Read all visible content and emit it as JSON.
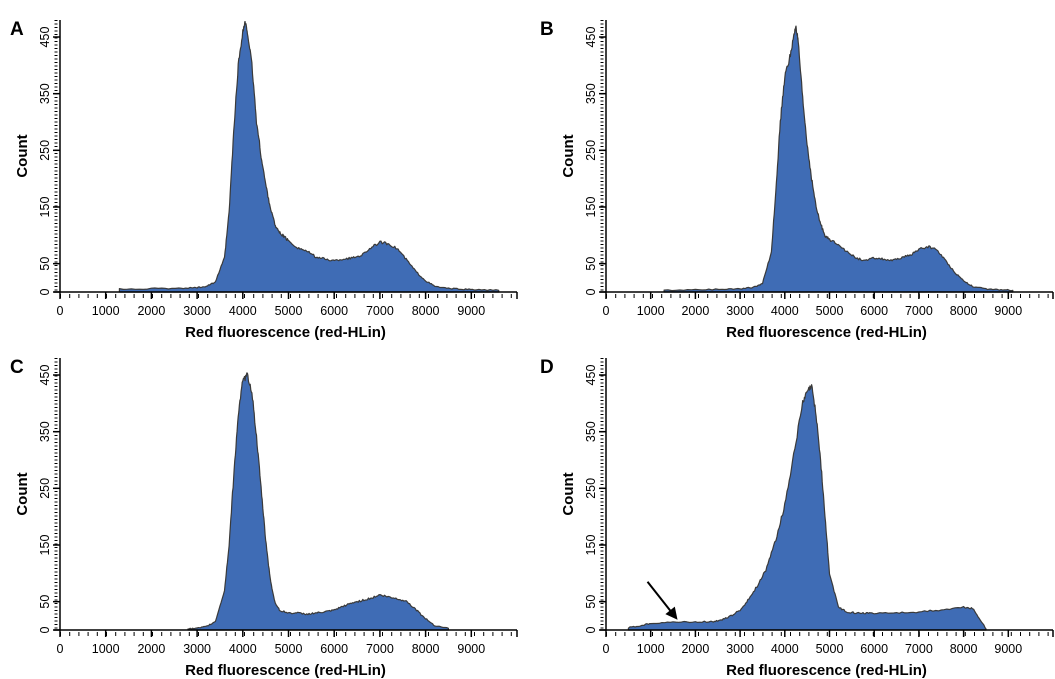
{
  "colors": {
    "fill": "#3f6cb5",
    "edge": "#3a3a3a",
    "axis": "#000000"
  },
  "chart_data": [
    {
      "panel": "A",
      "type": "area",
      "xlabel": "Red fluorescence (red-HLin)",
      "ylabel": "Count",
      "xlim": [
        0,
        10000
      ],
      "ylim": [
        0,
        480
      ],
      "xticks": [
        "0",
        "1000",
        "2000",
        "3000",
        "4000",
        "5000",
        "6000",
        "7000",
        "8000",
        "9000"
      ],
      "yticks": [
        "0",
        "50",
        "150",
        "250",
        "350",
        "450"
      ],
      "grid": false,
      "x": [
        1300,
        2000,
        2600,
        3000,
        3200,
        3400,
        3600,
        3700,
        3800,
        3900,
        4000,
        4050,
        4100,
        4200,
        4300,
        4400,
        4500,
        4600,
        4700,
        4800,
        4900,
        5000,
        5200,
        5400,
        5600,
        5800,
        6000,
        6200,
        6400,
        6600,
        6800,
        7000,
        7200,
        7400,
        7600,
        7800,
        8000,
        8200,
        8500,
        8800,
        9100,
        9600
      ],
      "y": [
        5,
        6,
        6,
        8,
        10,
        18,
        60,
        140,
        280,
        400,
        460,
        475,
        460,
        400,
        300,
        240,
        190,
        150,
        120,
        105,
        98,
        90,
        78,
        72,
        62,
        58,
        55,
        58,
        60,
        65,
        78,
        88,
        85,
        75,
        55,
        35,
        20,
        10,
        6,
        5,
        4,
        3
      ]
    },
    {
      "panel": "B",
      "type": "area",
      "xlabel": "Red fluorescence (red-HLin)",
      "ylabel": "Count",
      "xlim": [
        0,
        10000
      ],
      "ylim": [
        0,
        480
      ],
      "xticks": [
        "0",
        "1000",
        "2000",
        "3000",
        "4000",
        "5000",
        "6000",
        "7000",
        "8000",
        "9000"
      ],
      "yticks": [
        "0",
        "50",
        "150",
        "250",
        "350",
        "450"
      ],
      "grid": false,
      "x": [
        1300,
        2000,
        2600,
        3000,
        3300,
        3500,
        3700,
        3800,
        3900,
        4000,
        4100,
        4200,
        4250,
        4300,
        4400,
        4500,
        4600,
        4700,
        4800,
        4900,
        5000,
        5200,
        5400,
        5600,
        5800,
        6000,
        6200,
        6400,
        6600,
        6800,
        7000,
        7200,
        7400,
        7600,
        7800,
        8000,
        8200,
        8500,
        8800,
        9100
      ],
      "y": [
        3,
        4,
        5,
        6,
        8,
        15,
        70,
        180,
        300,
        380,
        410,
        450,
        470,
        440,
        340,
        260,
        200,
        150,
        120,
        100,
        92,
        85,
        70,
        60,
        55,
        60,
        58,
        55,
        60,
        65,
        75,
        80,
        75,
        55,
        35,
        20,
        10,
        5,
        4,
        3
      ]
    },
    {
      "panel": "C",
      "type": "area",
      "xlabel": "Red fluorescence (red-HLin)",
      "ylabel": "Count",
      "xlim": [
        0,
        10000
      ],
      "ylim": [
        0,
        480
      ],
      "xticks": [
        "0",
        "1000",
        "2000",
        "3000",
        "4000",
        "5000",
        "6000",
        "7000",
        "8000",
        "9000"
      ],
      "yticks": [
        "0",
        "50",
        "150",
        "250",
        "350",
        "450"
      ],
      "grid": false,
      "x": [
        2800,
        3000,
        3200,
        3400,
        3600,
        3700,
        3800,
        3900,
        4000,
        4100,
        4200,
        4300,
        4400,
        4500,
        4600,
        4700,
        4800,
        5000,
        5200,
        5400,
        5600,
        5800,
        6000,
        6200,
        6400,
        6600,
        6800,
        7000,
        7200,
        7400,
        7600,
        7800,
        8000,
        8200,
        8500
      ],
      "y": [
        2,
        3,
        6,
        15,
        70,
        150,
        270,
        380,
        440,
        450,
        420,
        340,
        250,
        160,
        90,
        50,
        35,
        30,
        30,
        28,
        30,
        32,
        35,
        42,
        48,
        52,
        56,
        62,
        58,
        55,
        50,
        35,
        20,
        8,
        3
      ]
    },
    {
      "panel": "D",
      "type": "area",
      "xlabel": "Red fluorescence (red-HLin)",
      "ylabel": "Count",
      "xlim": [
        0,
        10000
      ],
      "ylim": [
        0,
        480
      ],
      "xticks": [
        "0",
        "1000",
        "2000",
        "3000",
        "4000",
        "5000",
        "6000",
        "7000",
        "8000",
        "9000"
      ],
      "yticks": [
        "0",
        "50",
        "150",
        "250",
        "350",
        "450"
      ],
      "grid": false,
      "x": [
        500,
        800,
        1000,
        1500,
        2000,
        2400,
        2600,
        2800,
        3000,
        3200,
        3400,
        3600,
        3800,
        4000,
        4200,
        4400,
        4500,
        4600,
        4700,
        4800,
        4900,
        5000,
        5200,
        5400,
        5600,
        5800,
        6000,
        6500,
        7000,
        7500,
        8000,
        8200,
        8400,
        8500
      ],
      "y": [
        4,
        8,
        12,
        14,
        14,
        15,
        18,
        25,
        35,
        55,
        80,
        110,
        160,
        220,
        310,
        400,
        420,
        430,
        380,
        300,
        200,
        100,
        40,
        32,
        30,
        30,
        30,
        30,
        32,
        35,
        40,
        38,
        15,
        2
      ],
      "annotations": [
        {
          "type": "arrow",
          "x": 1600,
          "y": 18
        }
      ]
    }
  ]
}
